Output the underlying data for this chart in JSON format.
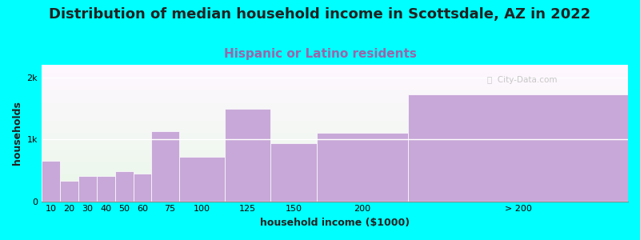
{
  "title": "Distribution of median household income in Scottsdale, AZ in 2022",
  "subtitle": "Hispanic or Latino residents",
  "xlabel": "household income ($1000)",
  "ylabel": "households",
  "background_color": "#00FFFF",
  "bar_color": "#C8A8D8",
  "bar_edge_color": "#ffffff",
  "categories": [
    "10",
    "20",
    "30",
    "40",
    "50",
    "60",
    "75",
    "100",
    "125",
    "150",
    "200",
    "> 200"
  ],
  "values": [
    650,
    330,
    410,
    410,
    480,
    440,
    1130,
    720,
    1490,
    940,
    1110,
    1720
  ],
  "left_edges": [
    5,
    15,
    25,
    35,
    45,
    55,
    65,
    80,
    112,
    137,
    162,
    212
  ],
  "widths": [
    10,
    10,
    10,
    10,
    10,
    10,
    15,
    25,
    25,
    25,
    50,
    100
  ],
  "ylim": [
    0,
    2200
  ],
  "yticks": [
    0,
    1000,
    2000
  ],
  "ytick_labels": [
    "0",
    "1k",
    "2k"
  ],
  "title_fontsize": 13,
  "subtitle_fontsize": 11,
  "subtitle_color": "#9966AA",
  "axis_label_fontsize": 9,
  "watermark_text": "ⓘ  City-Data.com"
}
